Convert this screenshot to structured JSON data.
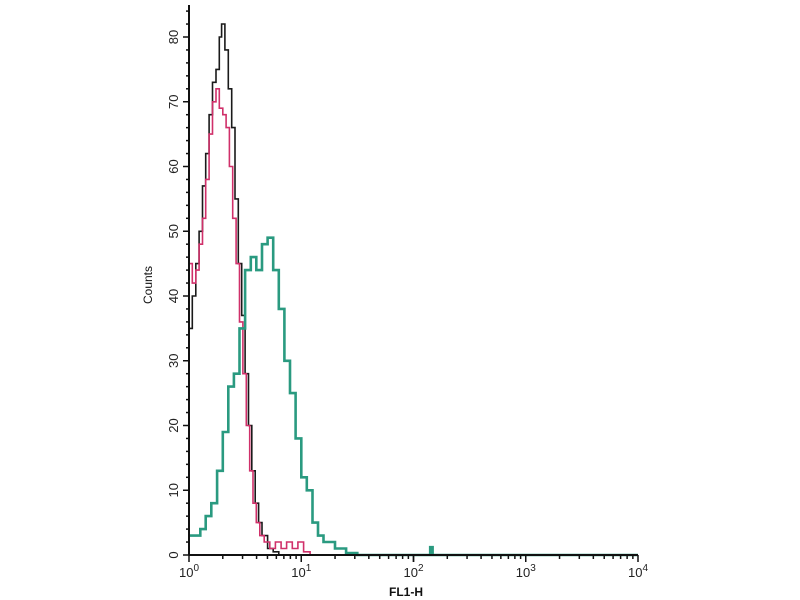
{
  "chart_data": {
    "type": "line",
    "title": "",
    "xlabel": "FL1-H",
    "ylabel": "Counts",
    "x_scale": "log",
    "xlim": [
      1,
      10000
    ],
    "ylim": [
      0,
      85
    ],
    "x_ticks": [
      {
        "base": "10",
        "exp": "0"
      },
      {
        "base": "10",
        "exp": "1"
      },
      {
        "base": "10",
        "exp": "2"
      },
      {
        "base": "10",
        "exp": "3"
      },
      {
        "base": "10",
        "exp": "4"
      }
    ],
    "y_ticks": [
      0,
      10,
      20,
      30,
      40,
      50,
      60,
      70,
      80
    ],
    "grid": false,
    "series": [
      {
        "color": "#1a1a1a",
        "x": [
          1,
          1.07,
          1.15,
          1.23,
          1.32,
          1.41,
          1.51,
          1.62,
          1.74,
          1.86,
          1.95,
          2.09,
          2.24,
          2.4,
          2.57,
          2.75,
          2.95,
          3.16,
          3.39,
          3.63,
          3.89,
          4.17,
          4.47,
          5.01,
          5.62,
          6.31,
          10000
        ],
        "y": [
          35,
          40,
          45,
          50,
          57,
          62,
          68,
          73,
          75,
          80,
          82,
          78,
          72,
          66,
          55,
          45,
          37,
          28,
          20,
          13,
          8,
          5,
          3,
          1,
          0.5,
          0,
          0
        ]
      },
      {
        "color": "#d0306a",
        "x": [
          1,
          1.07,
          1.15,
          1.23,
          1.32,
          1.41,
          1.51,
          1.62,
          1.74,
          1.86,
          2.0,
          2.14,
          2.29,
          2.45,
          2.63,
          2.82,
          3.02,
          3.24,
          3.47,
          3.72,
          3.98,
          4.27,
          4.68,
          5.25,
          5.89,
          6.61,
          7.41,
          8.32,
          9.33,
          10.5,
          12,
          10000
        ],
        "y": [
          45,
          42,
          44,
          48,
          52,
          58,
          65,
          70,
          72,
          69,
          68,
          66,
          60,
          52,
          45,
          36,
          28,
          20,
          13,
          8,
          5,
          3,
          2,
          1,
          2,
          1,
          2,
          1,
          2,
          0.5,
          0,
          0
        ]
      },
      {
        "color": "#2a9a80",
        "x": [
          1,
          1.12,
          1.26,
          1.41,
          1.58,
          1.78,
          2.0,
          2.24,
          2.51,
          2.82,
          3.16,
          3.55,
          3.98,
          4.47,
          5.01,
          5.62,
          6.31,
          7.08,
          7.94,
          8.91,
          10,
          11.2,
          12.6,
          14.1,
          15.8,
          20,
          25.1,
          31.6,
          140,
          141,
          148,
          10000
        ],
        "y": [
          3,
          3,
          4,
          6,
          8,
          13,
          19,
          26,
          28,
          35,
          44,
          46,
          44,
          48,
          49,
          44,
          38,
          30,
          25,
          18,
          12,
          10,
          5,
          3,
          2,
          1,
          0.3,
          0,
          0,
          1.2,
          0,
          0
        ]
      }
    ]
  }
}
